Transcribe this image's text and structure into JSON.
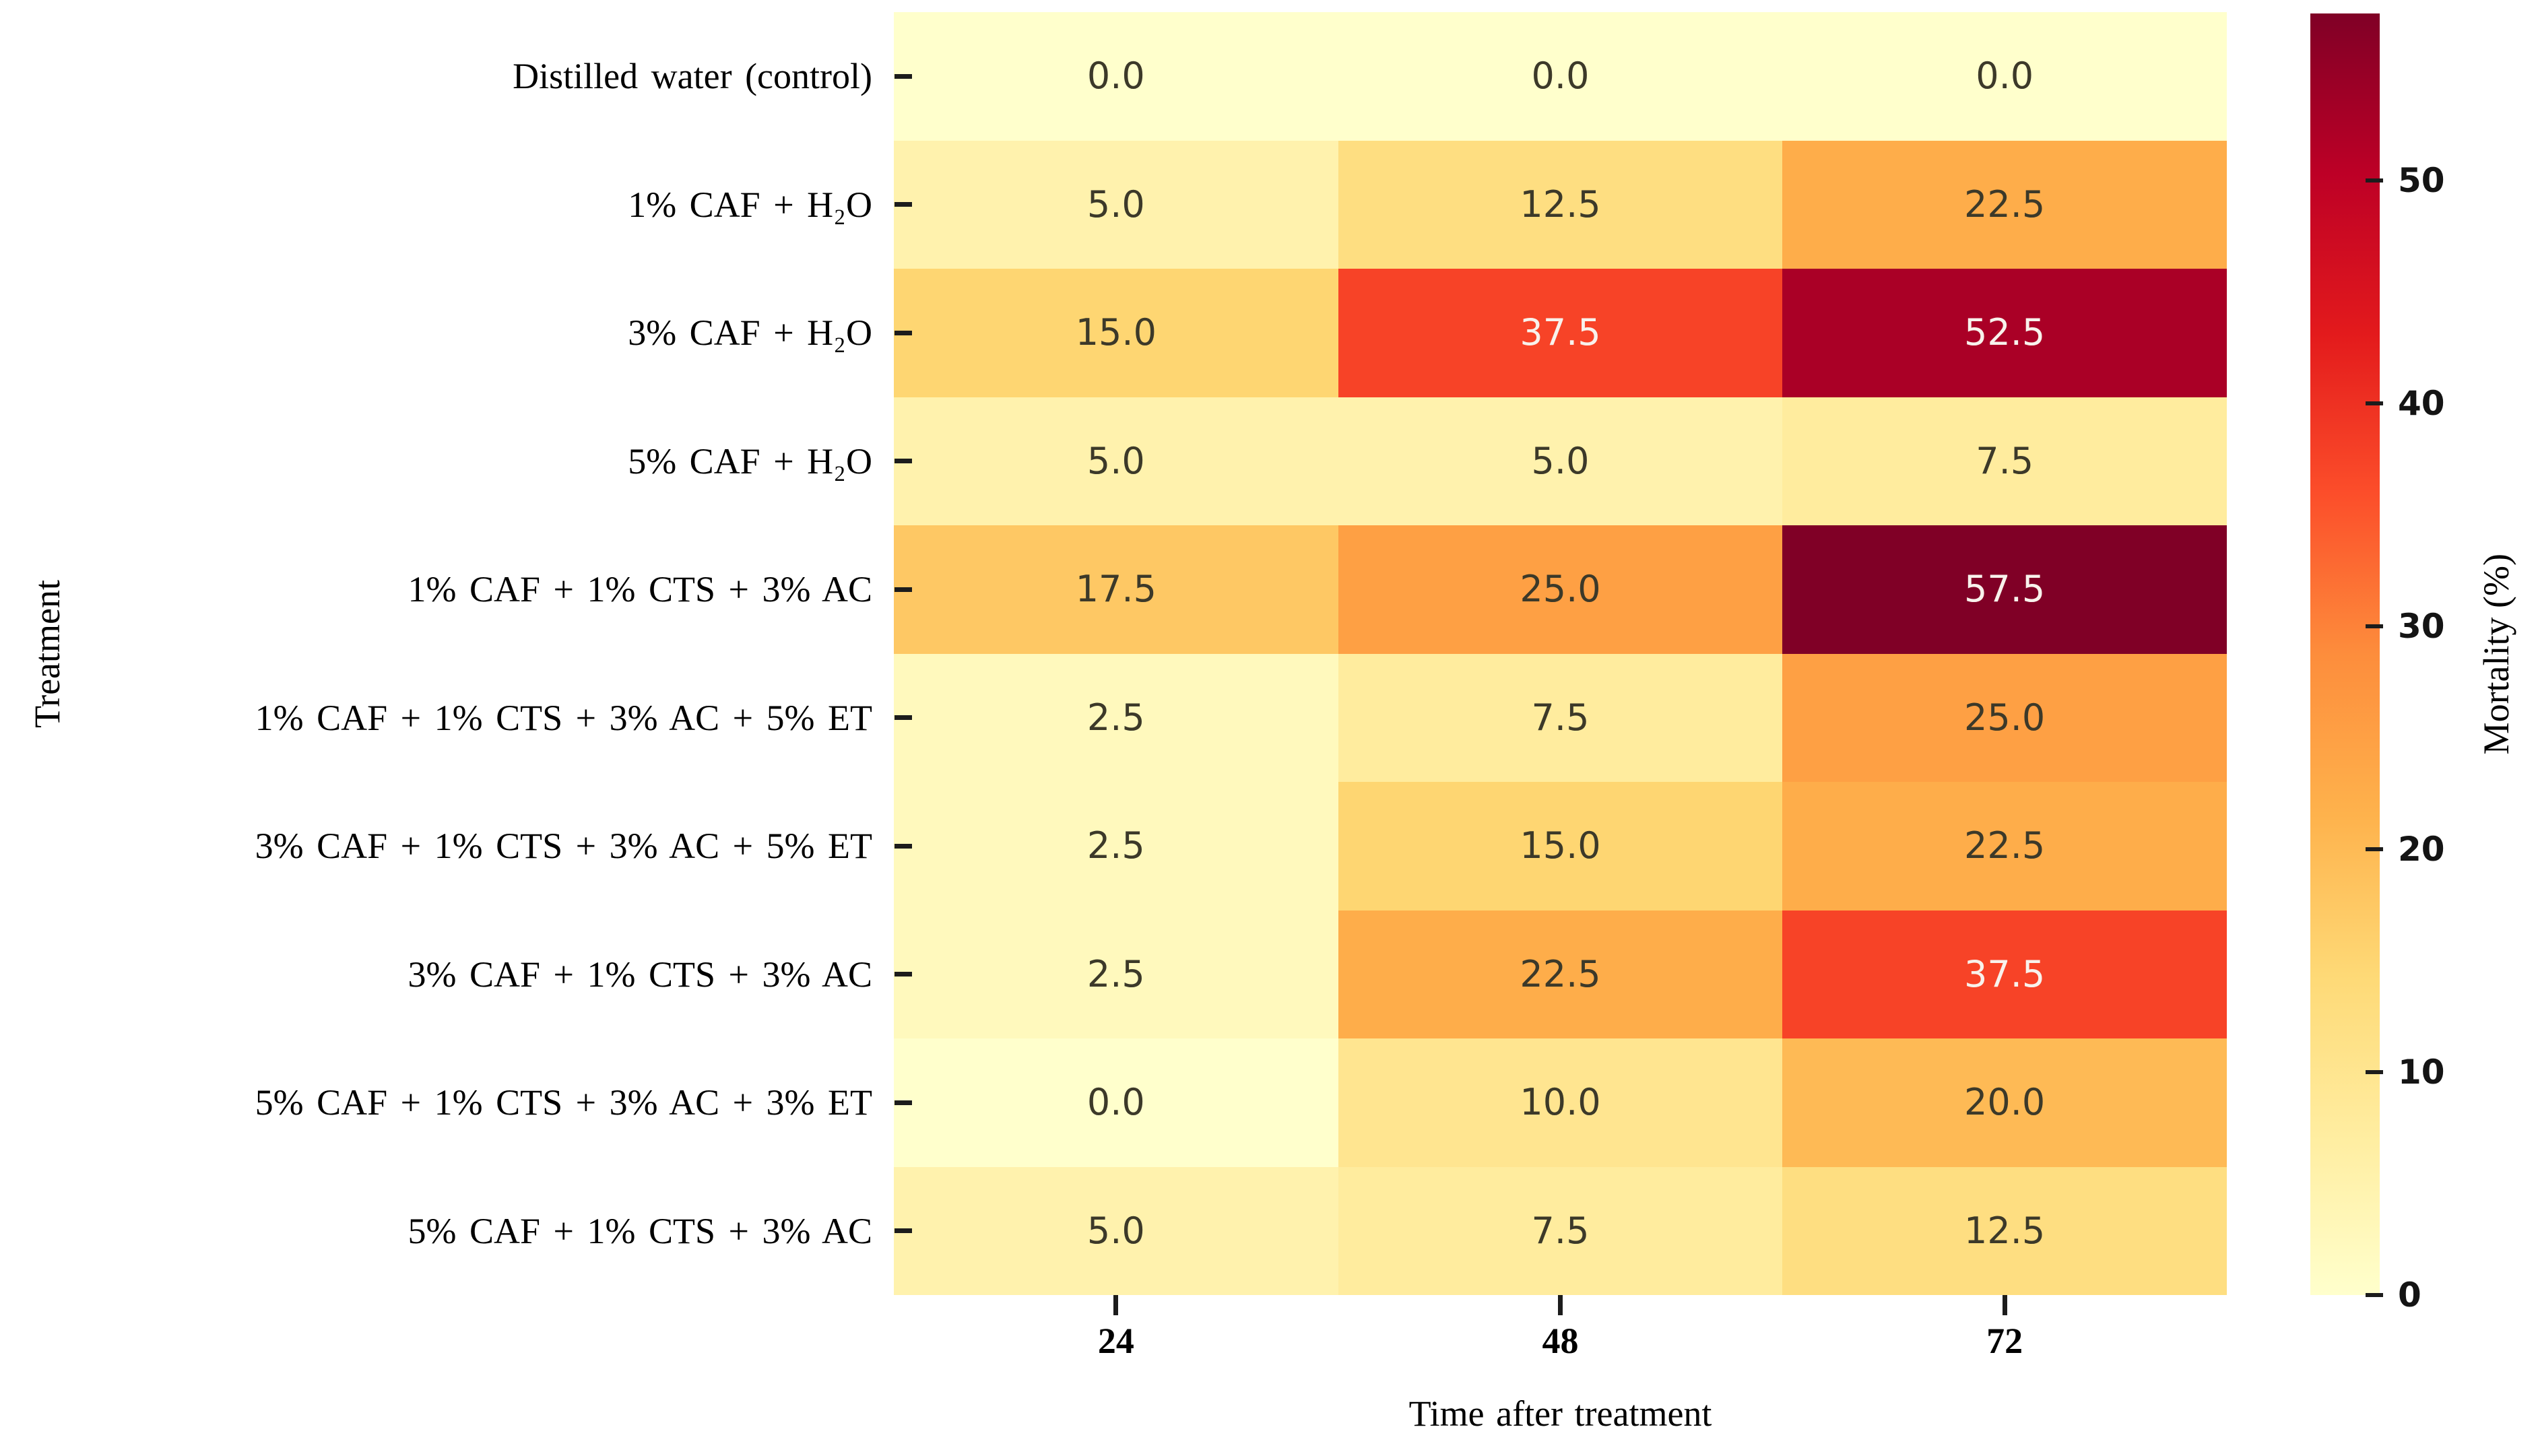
{
  "chart_data": {
    "type": "heatmap",
    "xlabel": "Time after treatment",
    "ylabel": "Treatment",
    "columns": [
      "24",
      "48",
      "72"
    ],
    "rows": [
      "Distilled water (control)",
      "1% CAF + H₂O",
      "3% CAF + H₂O",
      "5% CAF + H₂O",
      "1% CAF + 1% CTS + 3% AC",
      "1% CAF + 1% CTS + 3% AC + 5% ET",
      "3% CAF + 1% CTS + 3% AC + 5% ET",
      "3% CAF + 1% CTS + 3% AC",
      "5% CAF + 1% CTS + 3% AC + 3% ET",
      "5% CAF + 1% CTS + 3% AC"
    ],
    "values": [
      [
        0.0,
        0.0,
        0.0
      ],
      [
        5.0,
        12.5,
        22.5
      ],
      [
        15.0,
        37.5,
        52.5
      ],
      [
        5.0,
        5.0,
        7.5
      ],
      [
        17.5,
        25.0,
        57.5
      ],
      [
        2.5,
        7.5,
        25.0
      ],
      [
        2.5,
        15.0,
        22.5
      ],
      [
        2.5,
        22.5,
        37.5
      ],
      [
        0.0,
        10.0,
        20.0
      ],
      [
        5.0,
        7.5,
        12.5
      ]
    ],
    "colorbar": {
      "label": "Mortality (%)",
      "ticks": [
        0,
        10,
        20,
        30,
        40,
        50
      ],
      "vmin": 0,
      "vmax": 57.5,
      "colormap": "YlOrRd",
      "stops": [
        "#ffffcc",
        "#ffeda0",
        "#fed976",
        "#feb24c",
        "#fd8d3c",
        "#fc4e2a",
        "#e31a1c",
        "#bd0026",
        "#800026"
      ]
    },
    "annot_colors": {
      "dark": "#3c3929",
      "light": "#f8f2ec"
    },
    "tick_color": "#1c1c1c",
    "grid": false,
    "legend_position": "right-colorbar"
  }
}
